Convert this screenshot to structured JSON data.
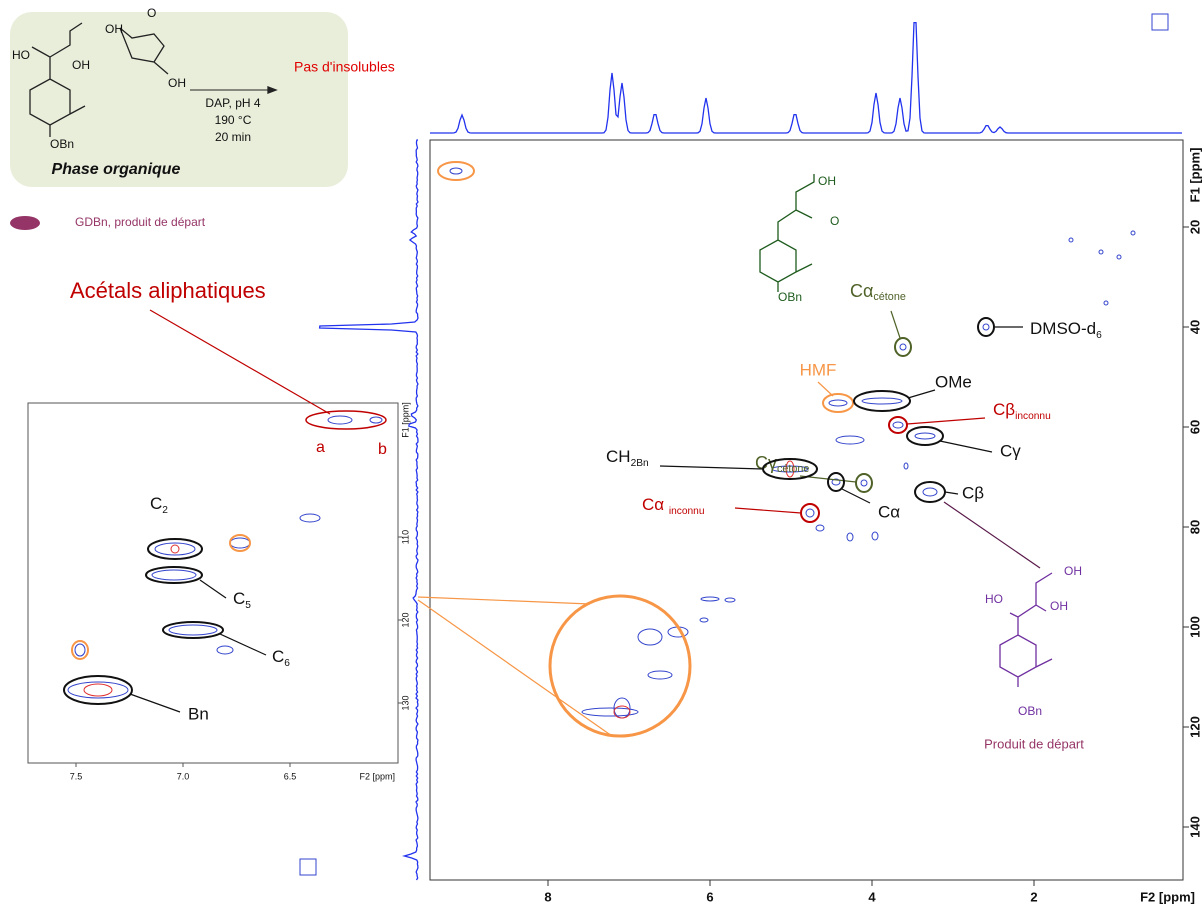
{
  "scheme": {
    "atoms": [
      "OH",
      "HO",
      "OH",
      "OBn",
      "O",
      "OH"
    ],
    "conditions": [
      "DAP, pH 4",
      "190 °C",
      "20 min"
    ],
    "result": "Pas d'insolubles",
    "phase": "Phase organique"
  },
  "legend": {
    "label": "GDBn, produit de départ"
  },
  "annotations": {
    "acetals": "Acétals aliphatiques",
    "a": "a",
    "b": "b",
    "c2": {
      "text": "C",
      "sub": "2"
    },
    "c5": {
      "text": "C",
      "sub": "5"
    },
    "c6": {
      "text": "C",
      "sub": "6"
    },
    "bn": "Bn",
    "ca_cetone": {
      "text": "Cα",
      "sub": "cétone"
    },
    "dmso": {
      "text": "DMSO-d",
      "sub": "6"
    },
    "hmf": "HMF",
    "ome": "OMe",
    "cb_inconnu": {
      "text": "Cβ",
      "sub": "inconnu"
    },
    "ch2bn": {
      "text": "CH",
      "sub": "2Bn"
    },
    "cg_cetone": {
      "text": "Cγ",
      "sub": "cétone"
    },
    "cg": "Cγ",
    "ca_inconnu": {
      "text": "Cα ",
      "sub": "inconnu"
    },
    "ca": "Cα",
    "cb": "Cβ"
  },
  "structures": {
    "ketone": [
      "OH",
      "O",
      "OBn"
    ],
    "start": [
      "OH",
      "HO",
      "OH",
      "OBn"
    ],
    "caption": "Produit de départ"
  },
  "main_plot": {
    "x_label": "F2 [ppm]",
    "y_label": "F1 [ppm]",
    "xticks": [
      8,
      6,
      4,
      2
    ],
    "yticks": [
      20,
      40,
      60,
      80,
      100,
      120,
      140
    ]
  },
  "inset": {
    "x_label": "F2 [ppm]",
    "y_label": "F1 [ppm]",
    "xticks": [
      7.5,
      {
        "value": 7,
        "label": "7.0"
      },
      6.5
    ],
    "yticks": [
      110,
      120,
      130
    ]
  }
}
